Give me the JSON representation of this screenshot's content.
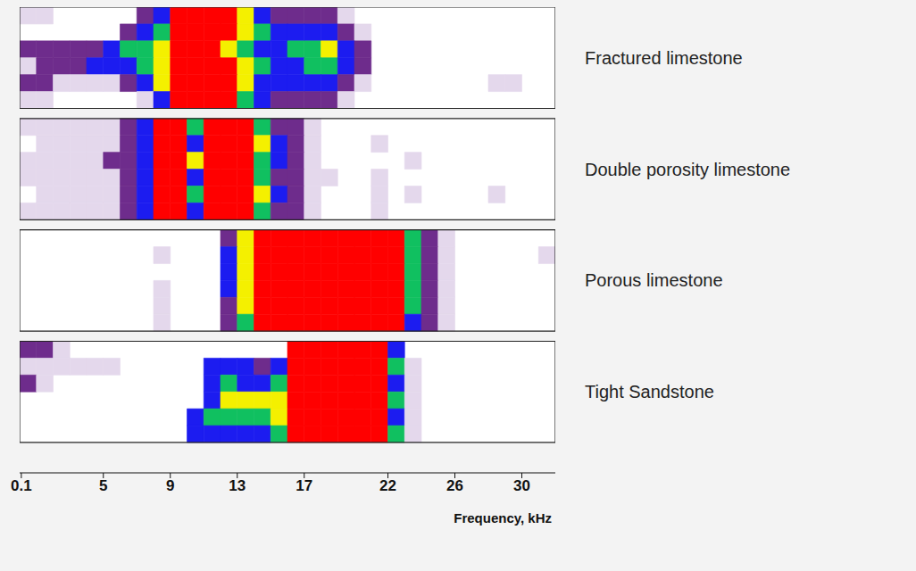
{
  "chart_data": {
    "type": "heatmap",
    "x_label": "Frequency, kHz",
    "xlim": [
      0,
      32
    ],
    "xticks": [
      0.1,
      5,
      9,
      13,
      17,
      22,
      26,
      30
    ],
    "colors": [
      "#ffffff",
      "#e4d8ec",
      "#6e2c8c",
      "#1c1cf0",
      "#10c060",
      "#f4f000",
      "#ff0000"
    ],
    "panels": [
      {
        "label": "Fractured limestone",
        "cells": [
          [
            1,
            1,
            0,
            0,
            0,
            0,
            0,
            2,
            3,
            6,
            6,
            6,
            6,
            5,
            3,
            2,
            2,
            2,
            2,
            1,
            0,
            0,
            0,
            0,
            0,
            0,
            0,
            0,
            0,
            0,
            0,
            0
          ],
          [
            0,
            0,
            0,
            0,
            0,
            0,
            2,
            3,
            4,
            6,
            6,
            6,
            6,
            5,
            4,
            3,
            3,
            3,
            3,
            2,
            1,
            0,
            0,
            0,
            0,
            0,
            0,
            0,
            0,
            0,
            0,
            0
          ],
          [
            2,
            2,
            2,
            2,
            2,
            3,
            4,
            4,
            5,
            6,
            6,
            6,
            5,
            4,
            3,
            3,
            4,
            4,
            5,
            3,
            2,
            0,
            0,
            0,
            0,
            0,
            0,
            0,
            0,
            0,
            0,
            0
          ],
          [
            1,
            2,
            2,
            2,
            3,
            3,
            3,
            4,
            5,
            6,
            6,
            6,
            6,
            5,
            4,
            3,
            3,
            4,
            4,
            3,
            2,
            0,
            0,
            0,
            0,
            0,
            0,
            0,
            0,
            0,
            0,
            0
          ],
          [
            2,
            2,
            1,
            1,
            1,
            1,
            2,
            3,
            5,
            6,
            6,
            6,
            6,
            5,
            3,
            3,
            3,
            3,
            3,
            2,
            1,
            0,
            0,
            0,
            0,
            0,
            0,
            0,
            1,
            1,
            0,
            0
          ],
          [
            1,
            1,
            0,
            0,
            0,
            0,
            0,
            1,
            3,
            6,
            6,
            6,
            6,
            4,
            3,
            2,
            2,
            2,
            2,
            1,
            0,
            0,
            0,
            0,
            0,
            0,
            0,
            0,
            0,
            0,
            0,
            0
          ]
        ]
      },
      {
        "label": "Double porosity limestone",
        "cells": [
          [
            1,
            1,
            1,
            1,
            1,
            1,
            2,
            3,
            6,
            6,
            4,
            6,
            6,
            6,
            4,
            2,
            2,
            1,
            0,
            0,
            0,
            0,
            0,
            0,
            0,
            0,
            0,
            0,
            0,
            0,
            0,
            0
          ],
          [
            0,
            1,
            1,
            1,
            1,
            1,
            2,
            3,
            6,
            6,
            3,
            6,
            6,
            6,
            5,
            3,
            2,
            1,
            0,
            0,
            0,
            1,
            0,
            0,
            0,
            0,
            0,
            0,
            0,
            0,
            0,
            0
          ],
          [
            1,
            1,
            1,
            1,
            1,
            2,
            2,
            3,
            6,
            6,
            5,
            6,
            6,
            6,
            4,
            3,
            2,
            1,
            0,
            0,
            0,
            0,
            0,
            1,
            0,
            0,
            0,
            0,
            0,
            0,
            0,
            0
          ],
          [
            1,
            1,
            1,
            1,
            1,
            1,
            2,
            3,
            6,
            6,
            3,
            6,
            6,
            6,
            4,
            2,
            2,
            1,
            1,
            0,
            0,
            1,
            0,
            0,
            0,
            0,
            0,
            0,
            0,
            0,
            0,
            0
          ],
          [
            0,
            1,
            1,
            1,
            1,
            1,
            2,
            3,
            6,
            6,
            4,
            6,
            6,
            6,
            5,
            3,
            2,
            1,
            0,
            0,
            0,
            1,
            0,
            1,
            0,
            0,
            0,
            0,
            1,
            0,
            0,
            0
          ],
          [
            1,
            1,
            1,
            1,
            1,
            1,
            2,
            3,
            6,
            6,
            3,
            6,
            6,
            6,
            4,
            2,
            2,
            1,
            0,
            0,
            0,
            1,
            0,
            0,
            0,
            0,
            0,
            0,
            0,
            0,
            0,
            0
          ]
        ]
      },
      {
        "label": "Porous limestone",
        "cells": [
          [
            0,
            0,
            0,
            0,
            0,
            0,
            0,
            0,
            0,
            0,
            0,
            0,
            2,
            5,
            6,
            6,
            6,
            6,
            6,
            6,
            6,
            6,
            6,
            4,
            2,
            1,
            0,
            0,
            0,
            0,
            0,
            0
          ],
          [
            0,
            0,
            0,
            0,
            0,
            0,
            0,
            0,
            1,
            0,
            0,
            0,
            3,
            5,
            6,
            6,
            6,
            6,
            6,
            6,
            6,
            6,
            6,
            4,
            2,
            1,
            0,
            0,
            0,
            0,
            0,
            1
          ],
          [
            0,
            0,
            0,
            0,
            0,
            0,
            0,
            0,
            0,
            0,
            0,
            0,
            3,
            5,
            6,
            6,
            6,
            6,
            6,
            6,
            6,
            6,
            6,
            4,
            2,
            1,
            0,
            0,
            0,
            0,
            0,
            0
          ],
          [
            0,
            0,
            0,
            0,
            0,
            0,
            0,
            0,
            1,
            0,
            0,
            0,
            3,
            5,
            6,
            6,
            6,
            6,
            6,
            6,
            6,
            6,
            6,
            4,
            2,
            1,
            0,
            0,
            0,
            0,
            0,
            0
          ],
          [
            0,
            0,
            0,
            0,
            0,
            0,
            0,
            0,
            1,
            0,
            0,
            0,
            2,
            5,
            6,
            6,
            6,
            6,
            6,
            6,
            6,
            6,
            6,
            4,
            2,
            1,
            0,
            0,
            0,
            0,
            0,
            0
          ],
          [
            0,
            0,
            0,
            0,
            0,
            0,
            0,
            0,
            1,
            0,
            0,
            0,
            2,
            4,
            6,
            6,
            6,
            6,
            6,
            6,
            6,
            6,
            6,
            3,
            2,
            1,
            0,
            0,
            0,
            0,
            0,
            0
          ]
        ]
      },
      {
        "label": "Tight Sandstone",
        "cells": [
          [
            2,
            2,
            1,
            0,
            0,
            0,
            0,
            0,
            0,
            0,
            0,
            0,
            0,
            0,
            0,
            0,
            6,
            6,
            6,
            6,
            6,
            6,
            3,
            0,
            0,
            0,
            0,
            0,
            0,
            0,
            0,
            0
          ],
          [
            1,
            1,
            1,
            1,
            1,
            1,
            0,
            0,
            0,
            0,
            0,
            3,
            3,
            3,
            2,
            3,
            6,
            6,
            6,
            6,
            6,
            6,
            4,
            1,
            0,
            0,
            0,
            0,
            0,
            0,
            0,
            0
          ],
          [
            2,
            1,
            0,
            0,
            0,
            0,
            0,
            0,
            0,
            0,
            0,
            3,
            4,
            3,
            3,
            4,
            6,
            6,
            6,
            6,
            6,
            6,
            3,
            1,
            0,
            0,
            0,
            0,
            0,
            0,
            0,
            0
          ],
          [
            0,
            0,
            0,
            0,
            0,
            0,
            0,
            0,
            0,
            0,
            0,
            3,
            5,
            5,
            5,
            5,
            6,
            6,
            6,
            6,
            6,
            6,
            4,
            1,
            0,
            0,
            0,
            0,
            0,
            0,
            0,
            0
          ],
          [
            0,
            0,
            0,
            0,
            0,
            0,
            0,
            0,
            0,
            0,
            3,
            4,
            4,
            4,
            4,
            5,
            6,
            6,
            6,
            6,
            6,
            6,
            3,
            1,
            0,
            0,
            0,
            0,
            0,
            0,
            0,
            0
          ],
          [
            0,
            0,
            0,
            0,
            0,
            0,
            0,
            0,
            0,
            0,
            3,
            3,
            3,
            3,
            3,
            4,
            6,
            6,
            6,
            6,
            6,
            6,
            4,
            1,
            0,
            0,
            0,
            0,
            0,
            0,
            0,
            0
          ]
        ]
      }
    ]
  }
}
